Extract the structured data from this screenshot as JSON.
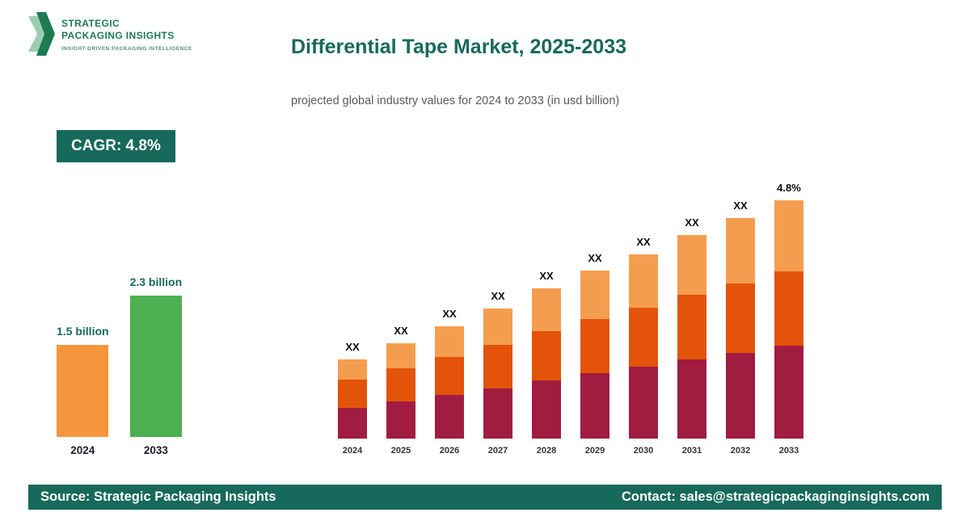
{
  "theme": {
    "accent_teal": "#17695B",
    "logo_green": "#1E7A4F",
    "maroon": "#A01C41",
    "dark_orange": "#E3530A",
    "light_orange": "#F59D4E",
    "summary_orange": "#F5963E",
    "summary_green": "#4CAF50"
  },
  "brand": {
    "line1": "STRATEGIC",
    "line2": "PACKAGING INSIGHTS",
    "tagline": "INSIGHT-DRIVEN PACKAGING INTELLIGENCE"
  },
  "header": {
    "title": "Differential Tape Market, 2025-2033",
    "subtitle": "projected global industry values for 2024 to 2033 (in usd billion)"
  },
  "cagr_badge": {
    "label": "CAGR: 4.8%"
  },
  "chart_data": [
    {
      "id": "summary",
      "type": "bar",
      "categories": [
        "2024",
        "2033"
      ],
      "values": [
        1.5,
        2.3
      ],
      "value_labels": [
        "1.5 billion",
        "2.3 billion"
      ],
      "bar_colors": [
        "#F5963E",
        "#4CAF50"
      ],
      "title": "",
      "xlabel": "",
      "ylabel": "",
      "ylim": [
        0,
        2.5
      ],
      "grid": false
    },
    {
      "id": "main",
      "type": "stacked-bar",
      "categories": [
        "2024",
        "2025",
        "2026",
        "2027",
        "2028",
        "2029",
        "2030",
        "2031",
        "2032",
        "2033"
      ],
      "bar_labels": [
        "XX",
        "XX",
        "XX",
        "XX",
        "XX",
        "XX",
        "XX",
        "XX",
        "XX",
        "4.8%"
      ],
      "series": [
        {
          "name": "segment-bottom",
          "color": "#A01C41",
          "values": [
            38,
            46,
            54,
            62,
            72,
            81,
            89,
            98,
            106,
            115
          ]
        },
        {
          "name": "segment-middle",
          "color": "#E3530A",
          "values": [
            35,
            41,
            47,
            54,
            61,
            67,
            73,
            80,
            86,
            92
          ]
        },
        {
          "name": "segment-top",
          "color": "#F59D4E",
          "values": [
            25,
            31,
            38,
            45,
            53,
            60,
            66,
            74,
            81,
            88
          ]
        }
      ],
      "totals_relative": [
        98,
        118,
        139,
        161,
        186,
        208,
        228,
        252,
        273,
        295
      ],
      "title": "",
      "xlabel": "",
      "ylabel": "",
      "grid": false,
      "legend_position": "none"
    }
  ],
  "footer": {
    "source": "Source: Strategic Packaging Insights",
    "contact": "Contact: sales@strategicpackaginginsights.com"
  }
}
